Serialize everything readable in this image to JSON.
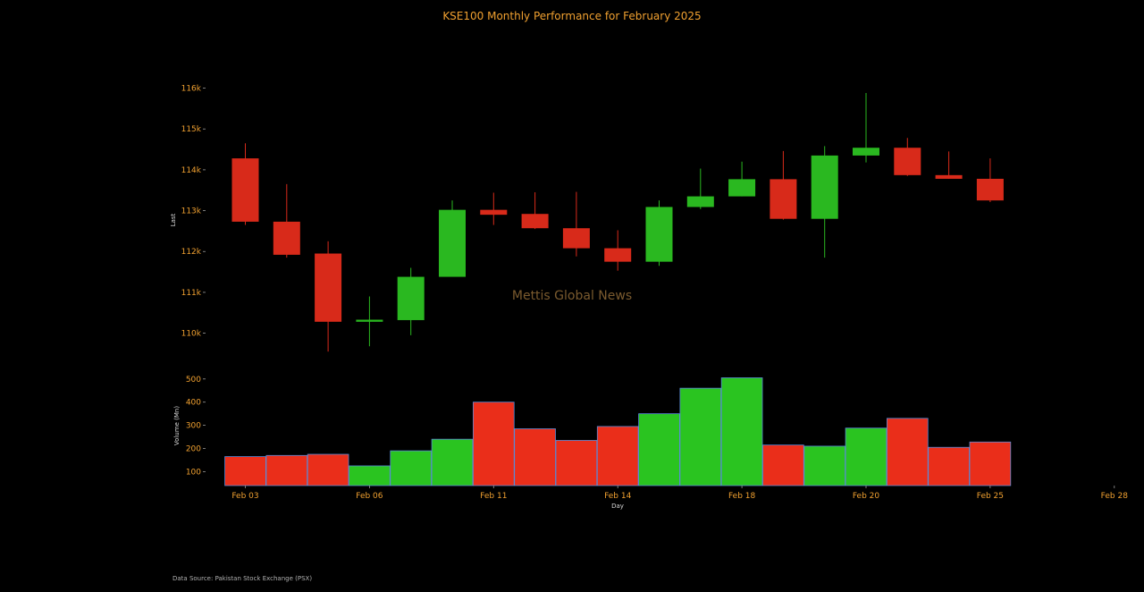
{
  "title": "KSE100 Monthly Performance for February 2025",
  "watermark": "Mettis Global News",
  "source": "Data Source: Pakistan Stock Exchange (PSX)",
  "colors": {
    "up": "#2ab820",
    "down": "#d82a1a",
    "volume_up": "#2ac420",
    "volume_down": "#ea2e1a",
    "text": "#f0a030"
  },
  "chart_data": {
    "type": "candlestick",
    "price_axis": {
      "label": "Last",
      "range": [
        109400,
        116800
      ],
      "ticks": [
        110000,
        111000,
        112000,
        113000,
        114000,
        115000,
        116000
      ],
      "tick_labels": [
        "110k",
        "111k",
        "112k",
        "113k",
        "114k",
        "115k",
        "116k"
      ]
    },
    "volume_axis": {
      "label": "Volume (Mn)",
      "range": [
        40,
        530
      ],
      "ticks": [
        100,
        200,
        300,
        400,
        500
      ],
      "tick_labels": [
        "100",
        "200",
        "300",
        "400",
        "500"
      ]
    },
    "x_axis": {
      "label": "Day",
      "tick_labels": [
        "Feb 03",
        "Feb 06",
        "Feb 11",
        "Feb 14",
        "Feb 18",
        "Feb 20",
        "Feb 25",
        "Feb 28"
      ],
      "tick_positions": [
        0,
        3,
        6,
        9,
        12,
        15,
        18,
        21
      ]
    },
    "candles": [
      {
        "open": 114280,
        "high": 114650,
        "low": 112650,
        "close": 112730,
        "volume": 165
      },
      {
        "open": 112730,
        "high": 113650,
        "low": 111850,
        "close": 111920,
        "volume": 170
      },
      {
        "open": 111950,
        "high": 112250,
        "low": 109550,
        "close": 110280,
        "volume": 175
      },
      {
        "open": 110280,
        "high": 110900,
        "low": 109680,
        "close": 110330,
        "volume": 125
      },
      {
        "open": 110320,
        "high": 111600,
        "low": 109950,
        "close": 111380,
        "volume": 190
      },
      {
        "open": 111380,
        "high": 113250,
        "low": 111380,
        "close": 113020,
        "volume": 240
      },
      {
        "open": 113020,
        "high": 113440,
        "low": 112650,
        "close": 112900,
        "volume": 400
      },
      {
        "open": 112920,
        "high": 113450,
        "low": 112550,
        "close": 112570,
        "volume": 285
      },
      {
        "open": 112570,
        "high": 113460,
        "low": 111880,
        "close": 112080,
        "volume": 235
      },
      {
        "open": 112080,
        "high": 112520,
        "low": 111530,
        "close": 111750,
        "volume": 295
      },
      {
        "open": 111750,
        "high": 113250,
        "low": 111650,
        "close": 113090,
        "volume": 350
      },
      {
        "open": 113090,
        "high": 114030,
        "low": 113040,
        "close": 113350,
        "volume": 460
      },
      {
        "open": 113350,
        "high": 114200,
        "low": 113350,
        "close": 113770,
        "volume": 505
      },
      {
        "open": 113770,
        "high": 114460,
        "low": 112780,
        "close": 112800,
        "volume": 215
      },
      {
        "open": 112800,
        "high": 114580,
        "low": 111850,
        "close": 114350,
        "volume": 210
      },
      {
        "open": 114350,
        "high": 115880,
        "low": 114180,
        "close": 114540,
        "volume": 288
      },
      {
        "open": 114540,
        "high": 114780,
        "low": 113850,
        "close": 113870,
        "volume": 330
      },
      {
        "open": 113870,
        "high": 114450,
        "low": 113780,
        "close": 113780,
        "volume": 205
      },
      {
        "open": 113780,
        "high": 114280,
        "low": 113210,
        "close": 113250,
        "volume": 228
      }
    ]
  }
}
